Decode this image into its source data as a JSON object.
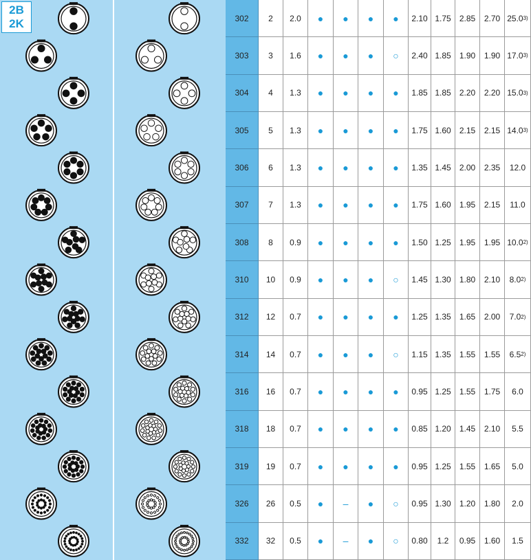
{
  "header": {
    "lines": [
      "2B",
      "2K"
    ]
  },
  "table": {
    "rows": [
      {
        "code": "302",
        "contacts": "2",
        "size": "2.0",
        "marks": [
          "●",
          "●",
          "●",
          "●"
        ],
        "values": [
          "2.10",
          "1.75",
          "2.85",
          "2.70"
        ],
        "last": {
          "text": "25.0",
          "sup": "3)"
        }
      },
      {
        "code": "303",
        "contacts": "3",
        "size": "1.6",
        "marks": [
          "●",
          "●",
          "●",
          "○"
        ],
        "values": [
          "2.40",
          "1.85",
          "1.90",
          "1.90"
        ],
        "last": {
          "text": "17.0",
          "sup": "3)"
        }
      },
      {
        "code": "304",
        "contacts": "4",
        "size": "1.3",
        "marks": [
          "●",
          "●",
          "●",
          "●"
        ],
        "values": [
          "1.85",
          "1.85",
          "2.20",
          "2.20"
        ],
        "last": {
          "text": "15.0",
          "sup": "3)"
        }
      },
      {
        "code": "305",
        "contacts": "5",
        "size": "1.3",
        "marks": [
          "●",
          "●",
          "●",
          "●"
        ],
        "values": [
          "1.75",
          "1.60",
          "2.15",
          "2.15"
        ],
        "last": {
          "text": "14.0",
          "sup": "3)"
        }
      },
      {
        "code": "306",
        "contacts": "6",
        "size": "1.3",
        "marks": [
          "●",
          "●",
          "●",
          "●"
        ],
        "values": [
          "1.35",
          "1.45",
          "2.00",
          "2.35"
        ],
        "last": {
          "text": "12.0"
        }
      },
      {
        "code": "307",
        "contacts": "7",
        "size": "1.3",
        "marks": [
          "●",
          "●",
          "●",
          "●"
        ],
        "values": [
          "1.75",
          "1.60",
          "1.95",
          "2.15"
        ],
        "last": {
          "text": "11.0"
        }
      },
      {
        "code": "308",
        "contacts": "8",
        "size": "0.9",
        "marks": [
          "●",
          "●",
          "●",
          "●"
        ],
        "values": [
          "1.50",
          "1.25",
          "1.95",
          "1.95"
        ],
        "last": {
          "text": "10.0",
          "sup": "2)"
        }
      },
      {
        "code": "310",
        "contacts": "10",
        "size": "0.9",
        "marks": [
          "●",
          "●",
          "●",
          "○"
        ],
        "values": [
          "1.45",
          "1.30",
          "1.80",
          "2.10"
        ],
        "last": {
          "text": "8.0",
          "sup": "2)"
        }
      },
      {
        "code": "312",
        "contacts": "12",
        "size": "0.7",
        "marks": [
          "●",
          "●",
          "●",
          "●"
        ],
        "values": [
          "1.25",
          "1.35",
          "1.65",
          "2.00"
        ],
        "last": {
          "text": "7.0",
          "sup": "2)"
        }
      },
      {
        "code": "314",
        "contacts": "14",
        "size": "0.7",
        "marks": [
          "●",
          "●",
          "●",
          "○"
        ],
        "values": [
          "1.15",
          "1.35",
          "1.55",
          "1.55"
        ],
        "last": {
          "text": "6.5",
          "sup": "2)"
        }
      },
      {
        "code": "316",
        "contacts": "16",
        "size": "0.7",
        "marks": [
          "●",
          "●",
          "●",
          "●"
        ],
        "values": [
          "0.95",
          "1.25",
          "1.55",
          "1.75"
        ],
        "last": {
          "text": "6.0"
        }
      },
      {
        "code": "318",
        "contacts": "18",
        "size": "0.7",
        "marks": [
          "●",
          "●",
          "●",
          "●"
        ],
        "values": [
          "0.85",
          "1.20",
          "1.45",
          "2.10"
        ],
        "last": {
          "text": "5.5"
        }
      },
      {
        "code": "319",
        "contacts": "19",
        "size": "0.7",
        "marks": [
          "●",
          "●",
          "●",
          "●"
        ],
        "values": [
          "0.95",
          "1.25",
          "1.55",
          "1.65"
        ],
        "last": {
          "text": "5.0"
        }
      },
      {
        "code": "326",
        "contacts": "26",
        "size": "0.5",
        "marks": [
          "●",
          "–",
          "●",
          "○"
        ],
        "values": [
          "0.95",
          "1.30",
          "1.20",
          "1.80"
        ],
        "last": {
          "text": "2.0"
        }
      },
      {
        "code": "332",
        "contacts": "32",
        "size": "0.5",
        "marks": [
          "●",
          "–",
          "●",
          "○"
        ],
        "values": [
          "0.80",
          "1.2",
          "0.95",
          "1.60"
        ],
        "last": {
          "text": "1.5"
        }
      }
    ]
  }
}
